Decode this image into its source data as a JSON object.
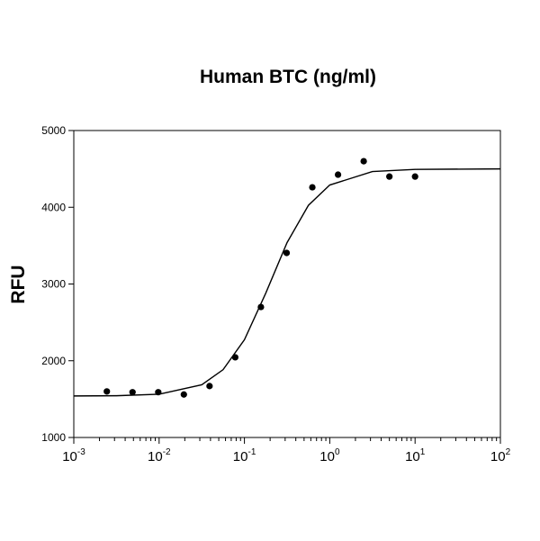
{
  "chart_data": {
    "type": "scatter",
    "title": "Human BTC (ng/ml)",
    "y_label": "RFU",
    "x_scale": "log",
    "xlim": [
      0.001,
      100
    ],
    "xticks": [
      {
        "value": 0.001,
        "label": "10-3"
      },
      {
        "value": 0.01,
        "label": "10-2"
      },
      {
        "value": 0.1,
        "label": "10-1"
      },
      {
        "value": 1,
        "label": "100"
      },
      {
        "value": 10,
        "label": "101"
      },
      {
        "value": 100,
        "label": "102"
      }
    ],
    "ylim": [
      1000,
      5000
    ],
    "yticks": [
      1000,
      2000,
      3000,
      4000,
      5000
    ],
    "series": [
      {
        "mode": "markers",
        "color": "#000000",
        "x": [
          0.00244,
          0.00488,
          0.00977,
          0.0195,
          0.039,
          0.078,
          0.156,
          0.3125,
          0.625,
          1.25,
          2.5,
          5,
          10
        ],
        "values": [
          1600,
          1590,
          1590,
          1560,
          1670,
          2045,
          2700,
          3405,
          4260,
          4425,
          4600,
          4400,
          4400
        ]
      },
      {
        "mode": "line",
        "color": "#000000",
        "x": [
          0.001,
          0.00316,
          0.01,
          0.0316,
          0.0562,
          0.1,
          0.178,
          0.316,
          0.562,
          1,
          3.16,
          10,
          100
        ],
        "values": [
          1541,
          1544,
          1564,
          1687,
          1884,
          2274,
          2882,
          3540,
          4025,
          4290,
          4465,
          4494,
          4500
        ]
      }
    ]
  }
}
